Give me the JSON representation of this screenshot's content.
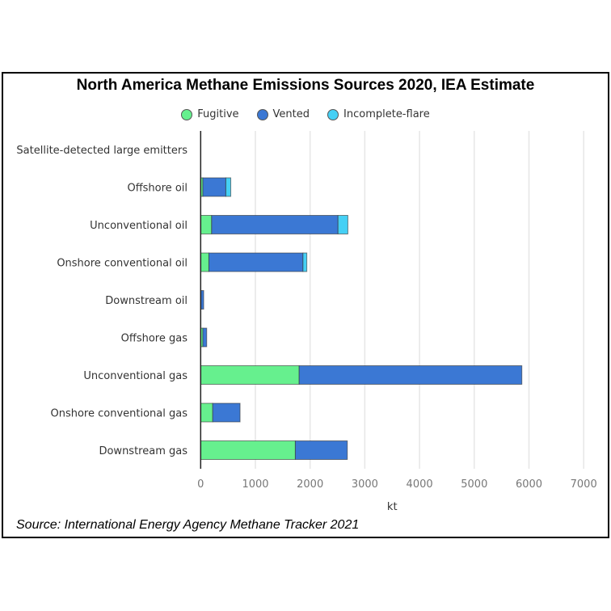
{
  "chart_data": {
    "type": "bar",
    "orientation": "horizontal",
    "stacked": true,
    "title": "North America Methane Emissions Sources 2020, IEA Estimate",
    "xlabel": "kt",
    "xlim": [
      0,
      7000
    ],
    "xticks": [
      "0",
      "1000",
      "2000",
      "3000",
      "4000",
      "5000",
      "6000",
      "7000"
    ],
    "grid": true,
    "legend_position": "top",
    "categories": [
      "Satellite-detected large emitters",
      "Offshore oil",
      "Unconventional oil",
      "Onshore conventional oil",
      "Downstream oil",
      "Offshore gas",
      "Unconventional gas",
      "Onshore conventional gas",
      "Downstream gas"
    ],
    "series": [
      {
        "name": "Fugitive",
        "color": "#66f08e",
        "values": [
          0,
          40,
          200,
          150,
          5,
          40,
          1800,
          220,
          1730
        ]
      },
      {
        "name": "Vented",
        "color": "#3b78d4",
        "values": [
          0,
          420,
          2310,
          1720,
          50,
          70,
          4070,
          500,
          950
        ]
      },
      {
        "name": "Incomplete-flare",
        "color": "#45d0f5",
        "values": [
          0,
          90,
          180,
          70,
          0,
          0,
          0,
          0,
          0
        ]
      }
    ]
  },
  "source": "Source: International Energy Agency Methane Tracker 2021"
}
